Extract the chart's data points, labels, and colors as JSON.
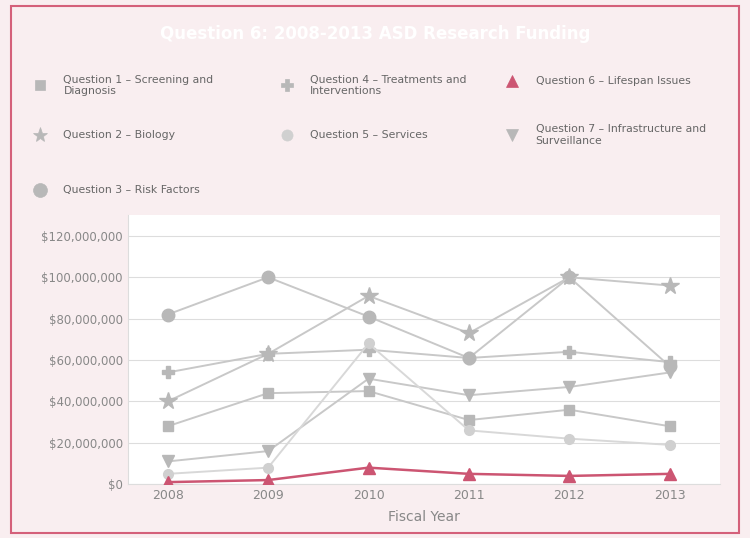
{
  "title": "Question 6: 2008-2013 ASD Research Funding",
  "xlabel": "Fiscal Year",
  "years": [
    2008,
    2009,
    2010,
    2011,
    2012,
    2013
  ],
  "series": {
    "Q1_Screening": {
      "label": "Question 1 – Screening and\nDiagnosis",
      "values": [
        28000000,
        44000000,
        45000000,
        31000000,
        36000000,
        28000000
      ]
    },
    "Q2_Biology": {
      "label": "Question 2 – Biology",
      "values": [
        40000000,
        63000000,
        91000000,
        73000000,
        100000000,
        96000000
      ]
    },
    "Q3_RiskFactors": {
      "label": "Question 3 – Risk Factors",
      "values": [
        82000000,
        100000000,
        81000000,
        61000000,
        100000000,
        57000000
      ]
    },
    "Q4_Treatments": {
      "label": "Question 4 – Treatments and\nInterventions",
      "values": [
        54000000,
        63000000,
        65000000,
        61000000,
        64000000,
        59000000
      ]
    },
    "Q5_Services": {
      "label": "Question 5 – Services",
      "values": [
        5000000,
        8000000,
        68000000,
        26000000,
        22000000,
        19000000
      ]
    },
    "Q6_Lifespan": {
      "label": "Question 6 – Lifespan Issues",
      "values": [
        1000000,
        2000000,
        8000000,
        5000000,
        4000000,
        5000000
      ]
    },
    "Q7_Infrastructure": {
      "label": "Question 7 – Infrastructure and\nSurveillance",
      "values": [
        11000000,
        16000000,
        51000000,
        43000000,
        47000000,
        54000000
      ]
    }
  },
  "ylim": [
    0,
    130000000
  ],
  "yticks": [
    0,
    20000000,
    40000000,
    60000000,
    80000000,
    100000000,
    120000000
  ],
  "title_bg_color": "#c96b85",
  "title_text_color": "#ffffff",
  "outer_bg_color": "#f9eef0",
  "inner_bg_color": "#ffffff",
  "grid_color": "#dddddd",
  "legend_text_color": "#666666",
  "axis_text_color": "#888888",
  "border_color": "#d4607a",
  "gray_line": "#c8c8c8",
  "gray_marker": "#b8b8b8",
  "pink_color": "#cc5572"
}
